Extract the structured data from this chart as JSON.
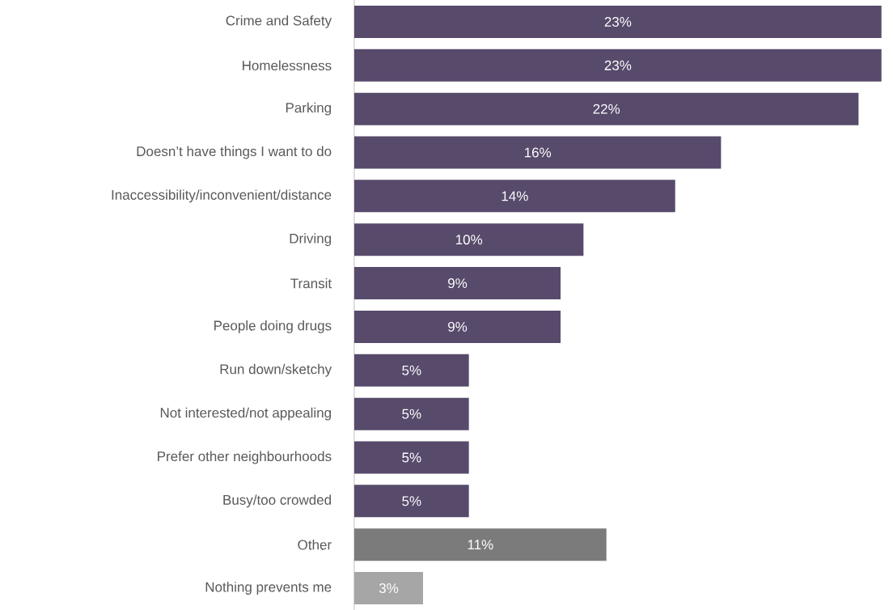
{
  "chart_data": {
    "type": "bar",
    "orientation": "horizontal",
    "categories": [
      "Crime and Safety",
      "Homelessness",
      "Parking",
      "Doesn’t have things I want to do",
      "Inaccessibility/inconvenient/distance",
      "Driving",
      "Transit",
      "People doing drugs",
      "Run down/sketchy",
      "Not interested/not appealing",
      "Prefer other neighbourhoods",
      "Busy/too crowded",
      "Other",
      "Nothing prevents me"
    ],
    "values": [
      23,
      23,
      22,
      16,
      14,
      10,
      9,
      9,
      5,
      5,
      5,
      5,
      11,
      3
    ],
    "value_labels": [
      "23%",
      "23%",
      "22%",
      "16%",
      "14%",
      "10%",
      "9%",
      "9%",
      "5%",
      "5%",
      "5%",
      "5%",
      "11%",
      "3%"
    ],
    "colors": [
      "#574a6b",
      "#574a6b",
      "#574a6b",
      "#574a6b",
      "#574a6b",
      "#574a6b",
      "#574a6b",
      "#574a6b",
      "#574a6b",
      "#574a6b",
      "#574a6b",
      "#574a6b",
      "#7b7b7b",
      "#a6a6a6"
    ]
  }
}
